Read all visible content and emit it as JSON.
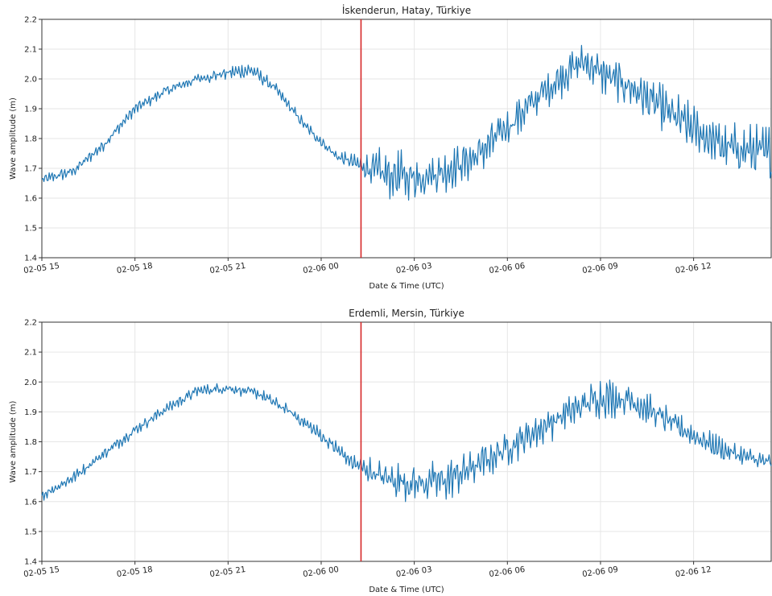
{
  "chart_data": [
    {
      "type": "line",
      "title": "İskenderun, Hatay, Türkiye",
      "xlabel": "Date & Time (UTC)",
      "ylabel": "Wave amplitude (m)",
      "ylim": [
        1.4,
        2.2
      ],
      "xlim": [
        "2023-02-05 15:00",
        "2023-02-06 14:30"
      ],
      "yticks": [
        "1.4",
        "1.5",
        "1.6",
        "1.7",
        "1.8",
        "1.9",
        "2.0",
        "2.1",
        "2.2"
      ],
      "xticks": [
        "02-05 15",
        "02-05 18",
        "02-05 21",
        "02-06 00",
        "02-06 03",
        "02-06 06",
        "02-06 09",
        "02-06 12"
      ],
      "grid": true,
      "line_color": "#1f77b4",
      "event_marker": {
        "x": "2023-02-06 01:17",
        "color": "#d62728"
      },
      "series": [
        {
          "x": [
            "2023-02-05 15:00",
            "2023-02-05 16:00",
            "2023-02-05 17:00",
            "2023-02-05 18:00",
            "2023-02-05 19:00",
            "2023-02-05 20:00",
            "2023-02-05 21:00",
            "2023-02-05 21:45",
            "2023-02-05 22:30",
            "2023-02-05 23:30",
            "2023-02-06 00:30",
            "2023-02-06 01:17",
            "2023-02-06 02:00",
            "2023-02-06 03:00",
            "2023-02-06 04:00",
            "2023-02-06 05:00",
            "2023-02-06 06:00",
            "2023-02-06 07:00",
            "2023-02-06 08:00",
            "2023-02-06 08:30",
            "2023-02-06 09:00",
            "2023-02-06 10:00",
            "2023-02-06 11:00",
            "2023-02-06 12:00",
            "2023-02-06 13:00",
            "2023-02-06 14:30"
          ],
          "values": [
            1.66,
            1.69,
            1.78,
            1.9,
            1.96,
            2.0,
            2.02,
            2.03,
            1.97,
            1.84,
            1.74,
            1.71,
            1.68,
            1.67,
            1.69,
            1.74,
            1.84,
            1.94,
            2.03,
            2.06,
            2.02,
            1.97,
            1.9,
            1.83,
            1.77,
            1.75
          ],
          "noise": [
            0.02,
            0.02,
            0.02,
            0.02,
            0.02,
            0.02,
            0.025,
            0.025,
            0.02,
            0.02,
            0.02,
            0.03,
            0.09,
            0.08,
            0.07,
            0.07,
            0.07,
            0.07,
            0.07,
            0.07,
            0.07,
            0.07,
            0.08,
            0.08,
            0.08,
            0.09
          ]
        }
      ]
    },
    {
      "type": "line",
      "title": "Erdemli, Mersin, Türkiye",
      "xlabel": "Date & Time (UTC)",
      "ylabel": "Wave amplitude (m)",
      "ylim": [
        1.4,
        2.2
      ],
      "xlim": [
        "2023-02-05 15:00",
        "2023-02-06 14:30"
      ],
      "yticks": [
        "1.4",
        "1.5",
        "1.6",
        "1.7",
        "1.8",
        "1.9",
        "2.0",
        "2.1",
        "2.2"
      ],
      "xticks": [
        "02-05 15",
        "02-05 18",
        "02-05 21",
        "02-06 00",
        "02-06 03",
        "02-06 06",
        "02-06 09",
        "02-06 12"
      ],
      "grid": true,
      "line_color": "#1f77b4",
      "event_marker": {
        "x": "2023-02-06 01:17",
        "color": "#d62728"
      },
      "series": [
        {
          "x": [
            "2023-02-05 15:00",
            "2023-02-05 16:00",
            "2023-02-05 17:00",
            "2023-02-05 18:00",
            "2023-02-05 19:00",
            "2023-02-05 20:00",
            "2023-02-05 21:00",
            "2023-02-05 22:00",
            "2023-02-05 23:00",
            "2023-02-06 00:00",
            "2023-02-06 01:00",
            "2023-02-06 02:00",
            "2023-02-06 03:00",
            "2023-02-06 04:00",
            "2023-02-06 05:00",
            "2023-02-06 06:00",
            "2023-02-06 07:00",
            "2023-02-06 08:00",
            "2023-02-06 09:00",
            "2023-02-06 10:00",
            "2023-02-06 11:00",
            "2023-02-06 12:00",
            "2023-02-06 13:00",
            "2023-02-06 14:00",
            "2023-02-06 14:30"
          ],
          "values": [
            1.62,
            1.68,
            1.76,
            1.84,
            1.91,
            1.97,
            1.98,
            1.96,
            1.9,
            1.82,
            1.73,
            1.68,
            1.66,
            1.67,
            1.72,
            1.78,
            1.84,
            1.9,
            1.95,
            1.94,
            1.88,
            1.82,
            1.77,
            1.74,
            1.73
          ],
          "noise": [
            0.02,
            0.02,
            0.02,
            0.02,
            0.02,
            0.02,
            0.02,
            0.02,
            0.02,
            0.025,
            0.03,
            0.06,
            0.07,
            0.07,
            0.06,
            0.06,
            0.06,
            0.06,
            0.07,
            0.06,
            0.05,
            0.04,
            0.04,
            0.03,
            0.03
          ]
        }
      ]
    }
  ]
}
